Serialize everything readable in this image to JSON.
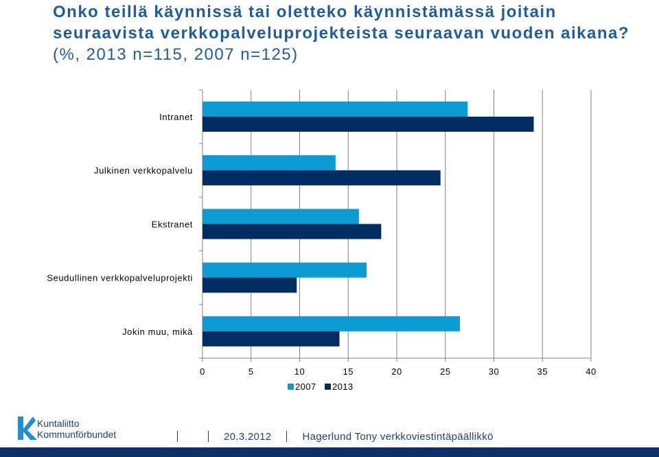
{
  "title": {
    "main": "Onko teillä käynnissä tai oletteko käynnistämässä joitain seuraavista verkkopalveluprojekteista seuraavan vuoden aikana?",
    "subtitle": "(%, 2013 n=115, 2007 n=125)"
  },
  "chart_data": {
    "type": "bar",
    "orientation": "horizontal",
    "categories": [
      "Intranet",
      "Julkinen verkkopalvelu",
      "Ekstranet",
      "Seudullinen verkkopalveluprojekti",
      "Jokin muu, mikä"
    ],
    "series": [
      {
        "name": "2007",
        "color": "#0d9bd4",
        "values": [
          27.3,
          13.7,
          16.1,
          16.9,
          26.5
        ]
      },
      {
        "name": "2013",
        "color": "#002d62",
        "values": [
          34.1,
          24.5,
          18.4,
          9.7,
          14.1
        ]
      }
    ],
    "xticks": [
      "0",
      "5",
      "10",
      "15",
      "20",
      "25",
      "30",
      "35",
      "40"
    ],
    "xlim": [
      0,
      40
    ],
    "grid": "vertical",
    "legend_position": "bottom"
  },
  "logo": {
    "line1": "Kuntaliitto",
    "line2": "Kommunförbundet"
  },
  "footer": {
    "date": "20.3.2012",
    "author": "Hagerlund Tony verkkoviestintäpäällikkö"
  }
}
